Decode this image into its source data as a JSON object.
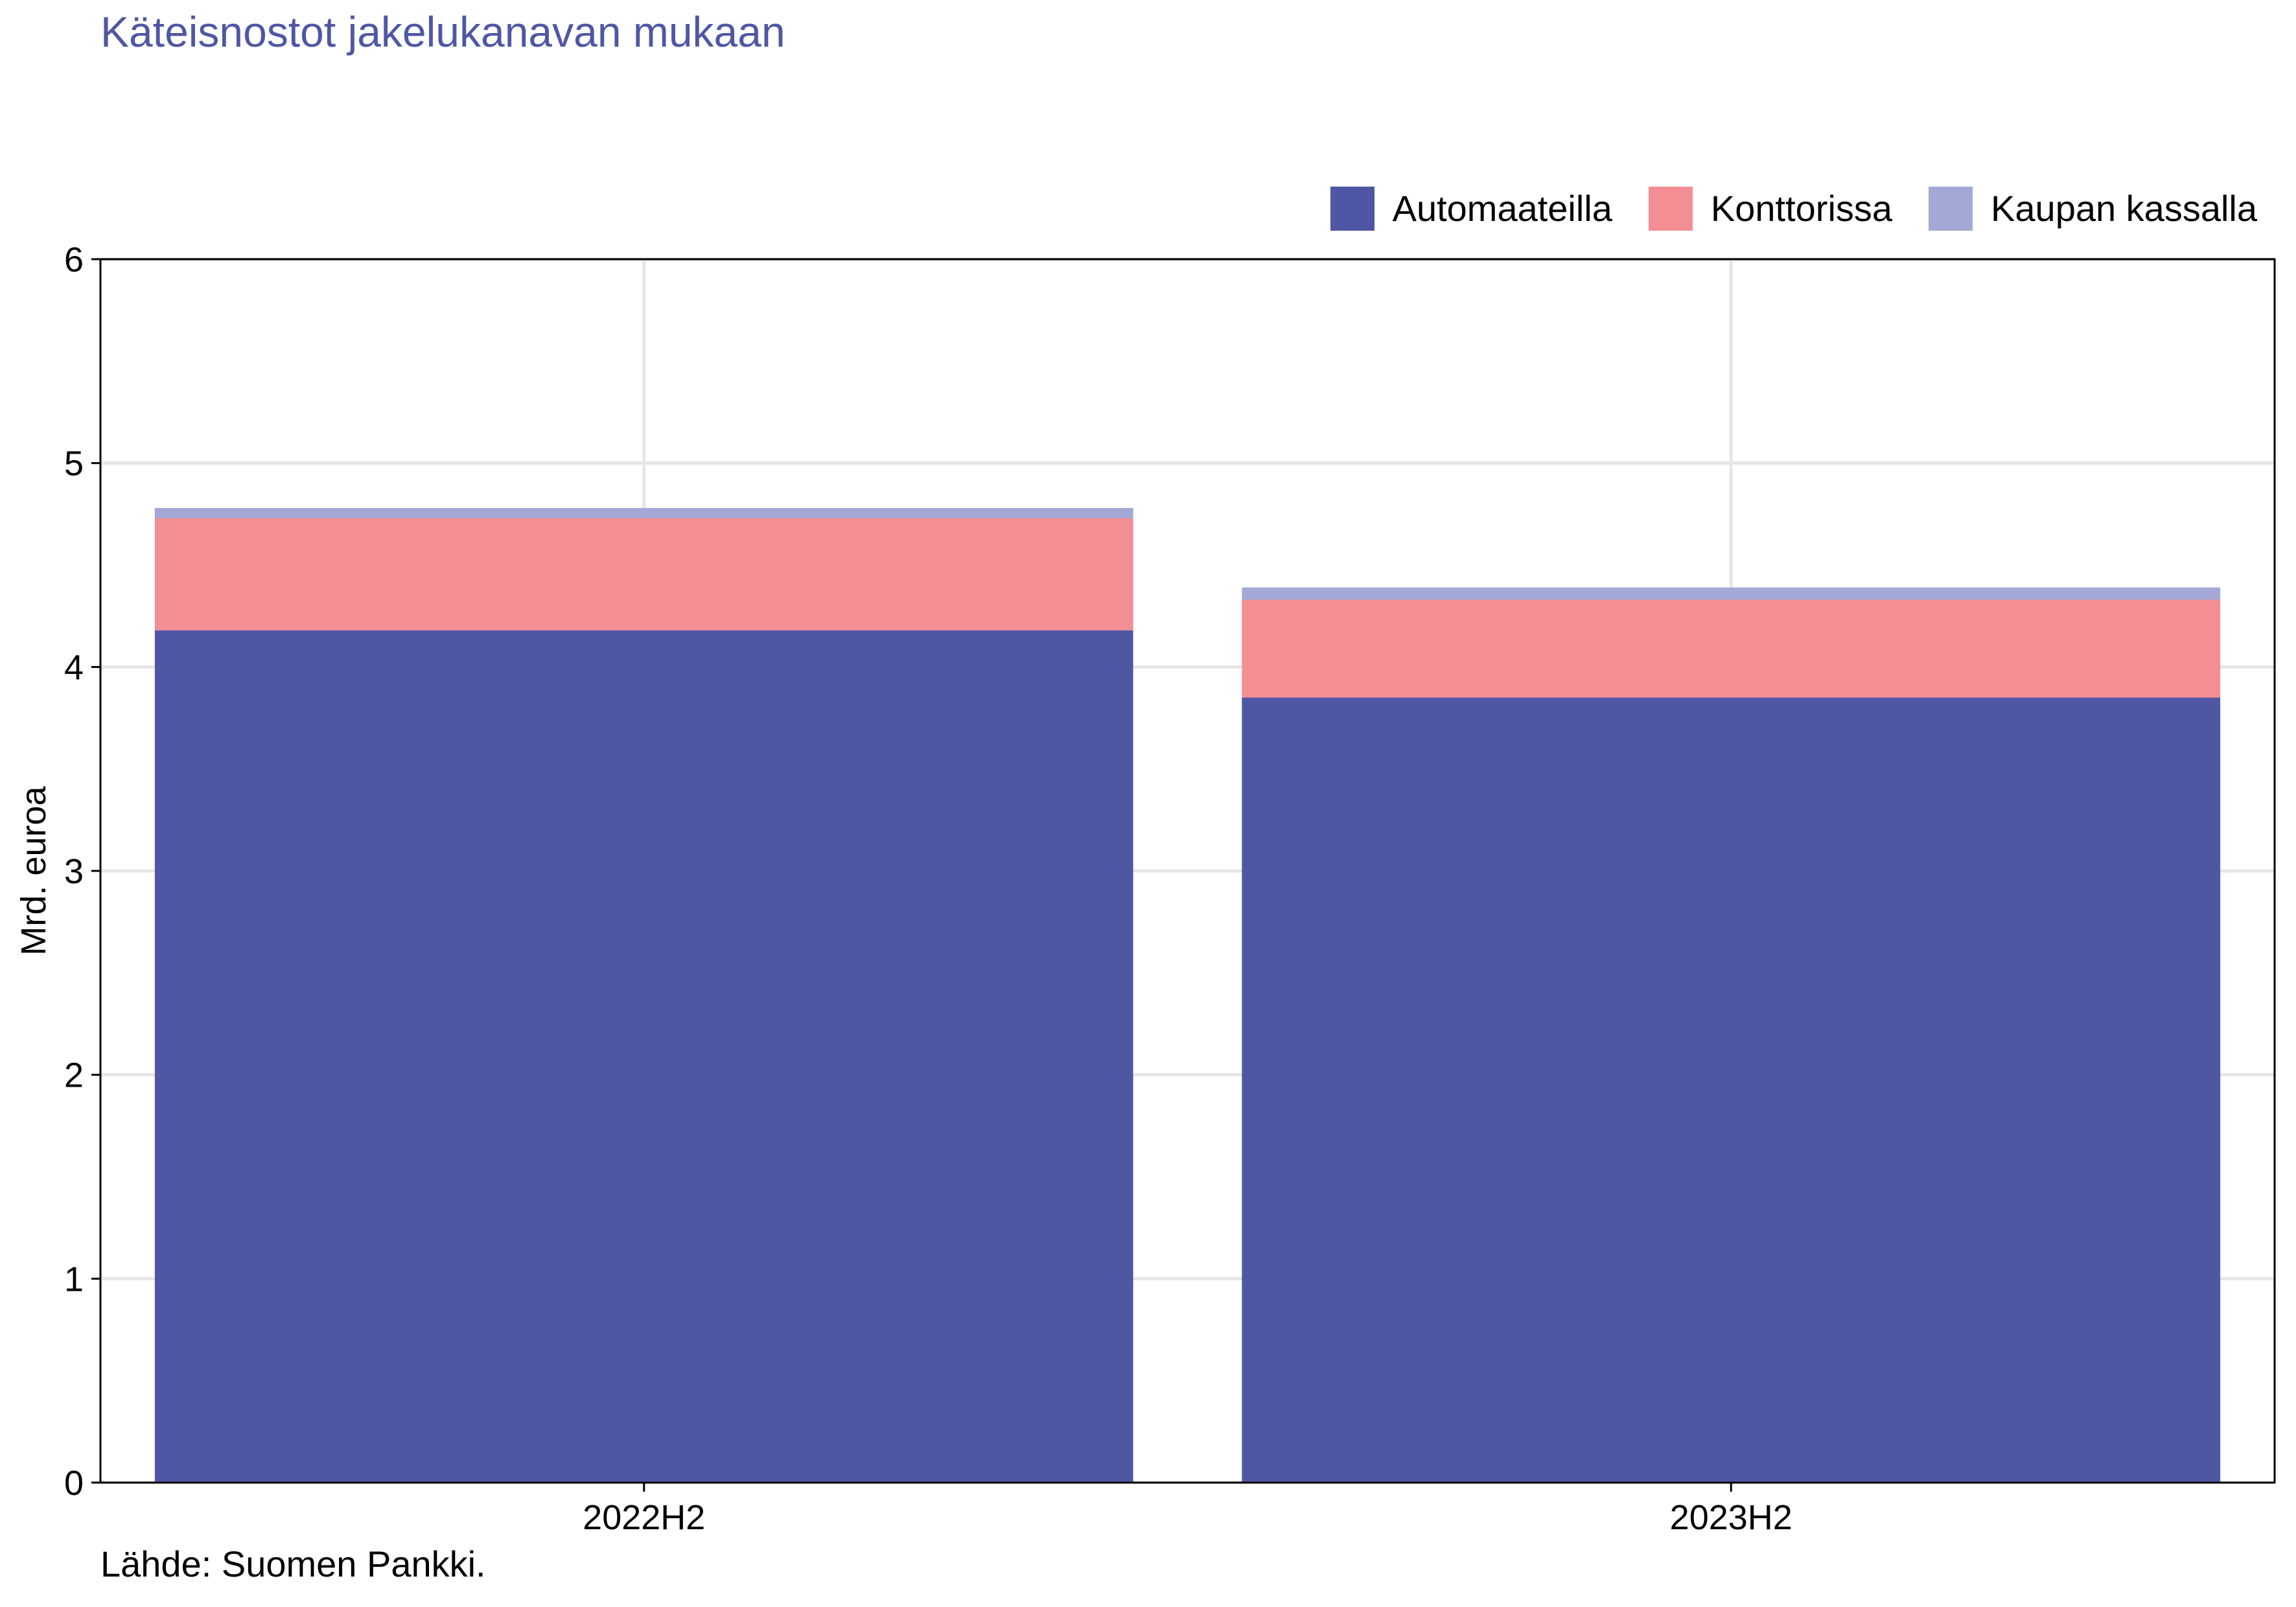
{
  "title": "Käteisnostot jakelukanavan mukaan",
  "source": "Lähde: Suomen Pankki.",
  "colors": {
    "title": "#4f57a4",
    "grid": "#e6e6e6"
  },
  "chart_data": {
    "type": "bar",
    "stacked": true,
    "title": "Käteisnostot jakelukanavan mukaan",
    "xlabel": "",
    "ylabel": "Mrd. euroa",
    "categories": [
      "2022H2",
      "2023H2"
    ],
    "ylim": [
      0,
      6
    ],
    "yticks": [
      "0",
      "1",
      "2",
      "3",
      "4",
      "5",
      "6"
    ],
    "grid": true,
    "legend_position": "top-right",
    "series": [
      {
        "name": "Automaateilla",
        "color": "#4f57a4",
        "values": [
          4.18,
          3.85
        ]
      },
      {
        "name": "Konttorissa",
        "color": "#f28e94",
        "values": [
          0.55,
          0.48
        ]
      },
      {
        "name": "Kaupan kassalla",
        "color": "#a4a8d6",
        "values": [
          0.05,
          0.06
        ]
      }
    ]
  }
}
